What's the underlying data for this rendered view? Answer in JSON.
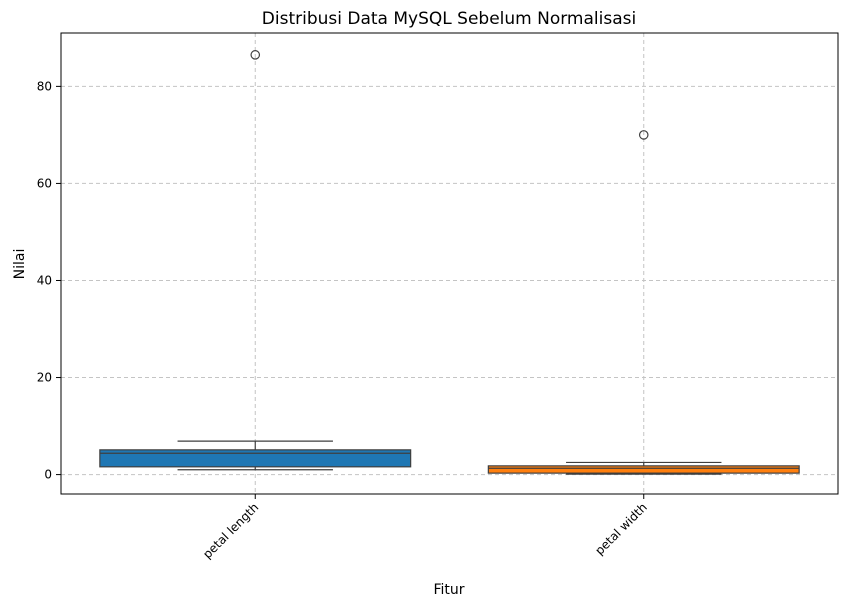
{
  "chart_data": {
    "type": "box",
    "title": "Distribusi Data MySQL Sebelum Normalisasi",
    "xlabel": "Fitur",
    "ylabel": "Nilai",
    "ylim": [
      -4,
      91
    ],
    "yticks": [
      0,
      20,
      40,
      60,
      80
    ],
    "grid": true,
    "categories": [
      "petal length",
      "petal width"
    ],
    "boxes": [
      {
        "name": "petal length",
        "color": "#1f77b4",
        "whisker_low": 1.0,
        "q1": 1.6,
        "median": 4.4,
        "q3": 5.1,
        "whisker_high": 6.9,
        "outliers": [
          86.5
        ]
      },
      {
        "name": "petal width",
        "color": "#ff7f0e",
        "whisker_low": 0.1,
        "q1": 0.3,
        "median": 1.3,
        "q3": 1.8,
        "whisker_high": 2.5,
        "outliers": [
          70.0
        ]
      }
    ]
  }
}
